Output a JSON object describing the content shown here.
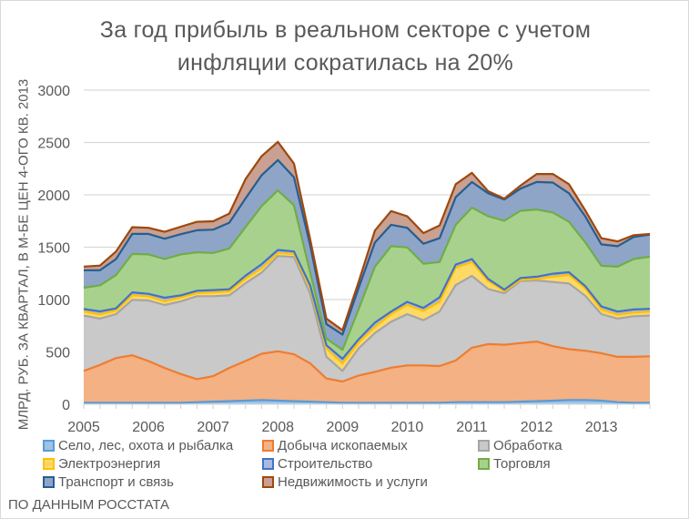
{
  "chart_data": {
    "type": "area",
    "stacked": true,
    "title_lines": [
      "За год прибыль в реальном секторе  с учетом",
      "инфляции сократилась  на 20%"
    ],
    "ylabel": "МЛРД. РУБ. ЗА КВАРТАЛ, В М-БЕ ЦЕН 4-ОГО КВ. 2013",
    "xlabel": "",
    "ylim": [
      0,
      3000
    ],
    "yticks": [
      0,
      500,
      1000,
      1500,
      2000,
      2500,
      3000
    ],
    "xticks": [
      "2005",
      "2006",
      "2007",
      "2008",
      "2009",
      "2010",
      "2011",
      "2012",
      "2013"
    ],
    "x_start": "2005Q1",
    "x_end": "2013Q4",
    "grid": true,
    "legend_position": "bottom",
    "footer": "ПО ДАННЫМ РОССТАТА",
    "series": [
      {
        "name": "Село, лес, охота и рыбалка",
        "fill": "#9dc3e6",
        "stroke": "#5b9bd5",
        "values": [
          15,
          15,
          15,
          15,
          15,
          15,
          15,
          20,
          25,
          30,
          35,
          40,
          35,
          30,
          25,
          20,
          15,
          15,
          15,
          15,
          15,
          15,
          15,
          20,
          20,
          20,
          20,
          25,
          30,
          35,
          40,
          40,
          35,
          20,
          15,
          15
        ]
      },
      {
        "name": "Добыча ископаемых",
        "fill": "#f4b183",
        "stroke": "#ed7d31",
        "values": [
          303,
          361,
          427,
          453,
          398,
          332,
          274,
          220,
          244,
          317,
          378,
          443,
          471,
          447,
          365,
          226,
          202,
          260,
          295,
          335,
          356,
          356,
          350,
          398,
          520,
          555,
          549,
          559,
          569,
          520,
          486,
          471,
          453,
          433,
          438,
          443
        ]
      },
      {
        "name": "Обработка",
        "fill": "#c9c9c9",
        "stroke": "#a5a5a5",
        "values": [
          529,
          442,
          419,
          529,
          578,
          601,
          694,
          792,
          763,
          693,
          743,
          774,
          910,
          930,
          665,
          208,
          101,
          260,
          370,
          438,
          490,
          432,
          520,
          721,
          686,
          526,
          491,
          593,
          584,
          613,
          627,
          526,
          373,
          365,
          388,
          389
        ]
      },
      {
        "name": "Электроэнергия",
        "fill": "#ffd966",
        "stroke": "#ffc000",
        "values": [
          40,
          40,
          35,
          43,
          41,
          35,
          37,
          31,
          37,
          38,
          43,
          43,
          29,
          29,
          58,
          81,
          72,
          57,
          60,
          73,
          88,
          88,
          93,
          166,
          132,
          76,
          21,
          11,
          14,
          50,
          82,
          73,
          44,
          38,
          35,
          38
        ]
      },
      {
        "name": "Строительство",
        "fill": "#a9b9e0",
        "stroke": "#4472c4",
        "values": [
          23,
          29,
          20,
          29,
          23,
          34,
          20,
          21,
          21,
          20,
          29,
          38,
          29,
          23,
          23,
          29,
          44,
          29,
          40,
          24,
          29,
          29,
          44,
          29,
          29,
          20,
          14,
          18,
          21,
          29,
          26,
          20,
          29,
          29,
          29,
          26
        ]
      },
      {
        "name": "Торговля",
        "fill": "#a9d18e",
        "stroke": "#70ad47",
        "values": [
          203,
          249,
          318,
          367,
          376,
          370,
          391,
          367,
          355,
          390,
          463,
          555,
          569,
          440,
          121,
          63,
          86,
          289,
          534,
          625,
          520,
          423,
          336,
          380,
          491,
          599,
          657,
          642,
          642,
          584,
          482,
          418,
          389,
          429,
          482,
          499
        ]
      },
      {
        "name": "Транспорт и связь",
        "fill": "#8ea5c8",
        "stroke": "#255e91",
        "values": [
          167,
          144,
          153,
          191,
          196,
          194,
          193,
          211,
          223,
          246,
          274,
          295,
          289,
          269,
          260,
          139,
          145,
          203,
          230,
          204,
          187,
          190,
          228,
          263,
          245,
          219,
          204,
          211,
          263,
          286,
          272,
          248,
          204,
          196,
          210,
          210
        ]
      },
      {
        "name": "Недвижимость и услуги",
        "fill": "#c9a092",
        "stroke": "#9e480e",
        "values": [
          35,
          44,
          72,
          64,
          58,
          66,
          72,
          81,
          80,
          87,
          185,
          182,
          174,
          130,
          58,
          52,
          43,
          57,
          115,
          131,
          111,
          102,
          122,
          125,
          87,
          20,
          8,
          29,
          76,
          82,
          87,
          58,
          59,
          46,
          18,
          6
        ]
      }
    ]
  }
}
